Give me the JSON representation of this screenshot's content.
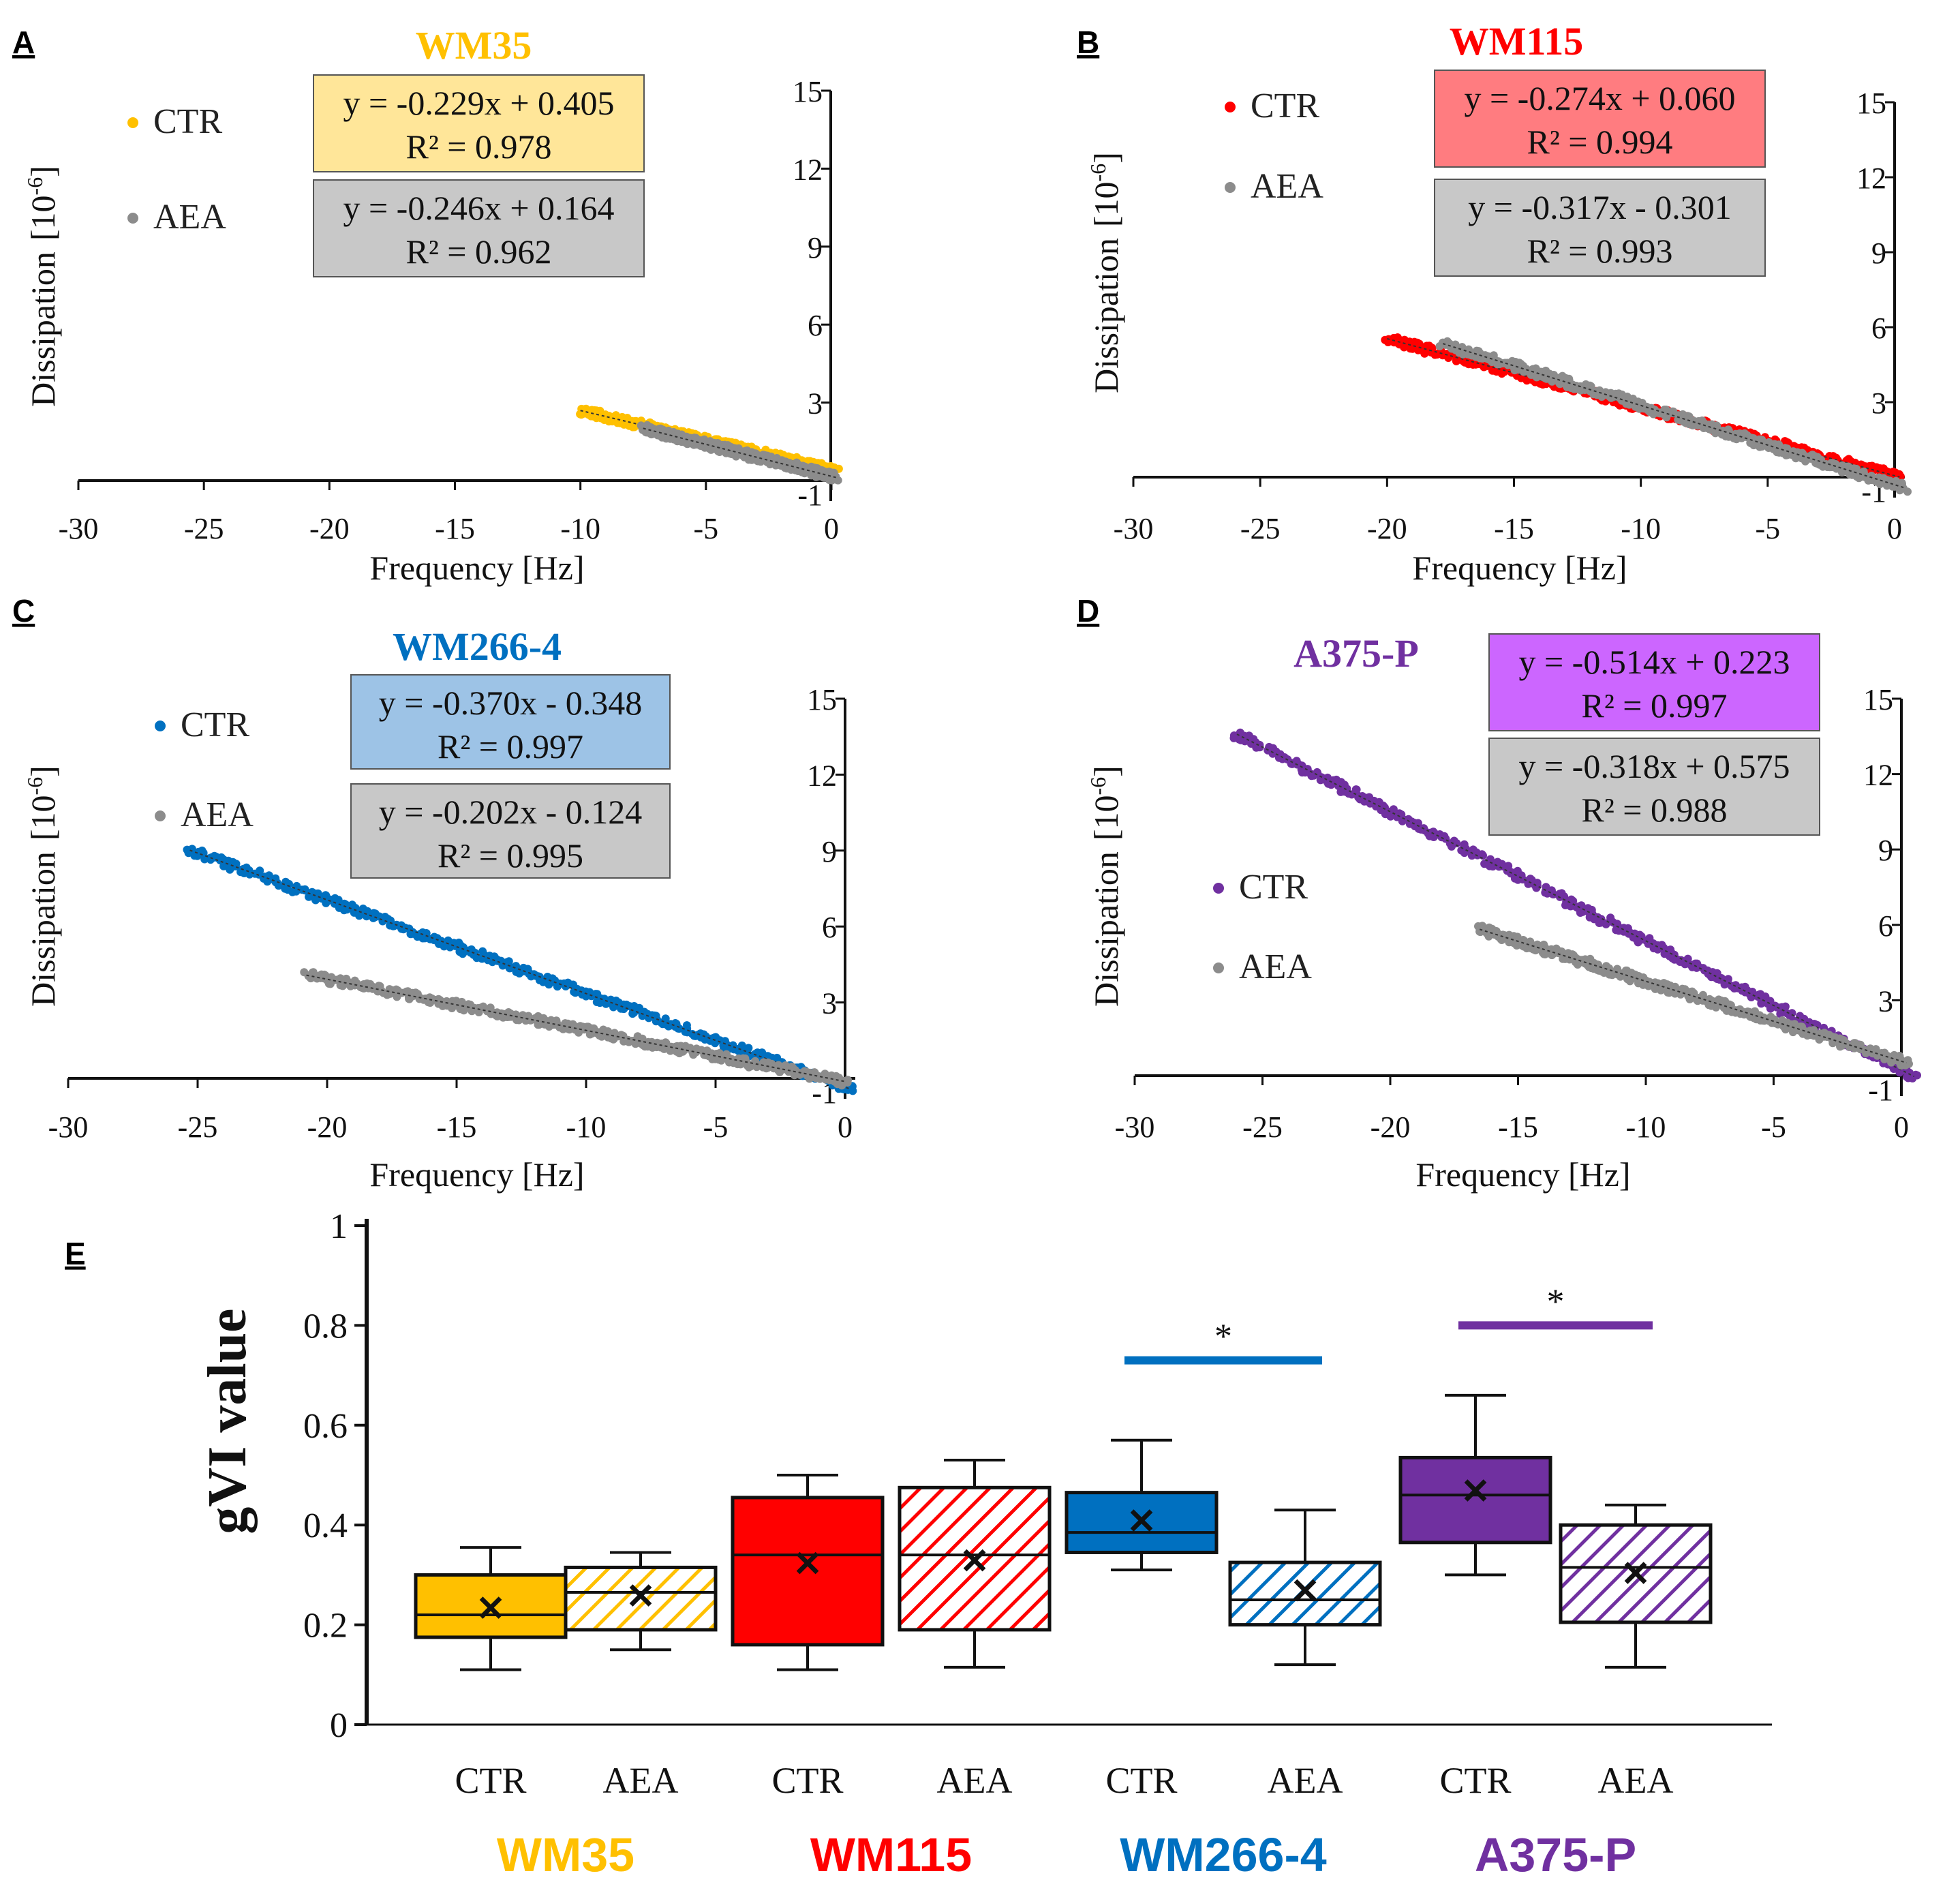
{
  "chart_data": [
    {
      "type": "scatter",
      "panel": "A",
      "title": "WM35",
      "title_color": "#FFC000",
      "xlabel": "Frequency [Hz]",
      "ylabel_main": "Dissipation",
      "ylabel_unit_base": "[10",
      "ylabel_unit_exp": "-6",
      "ylabel_unit_close": "]",
      "xlim": [
        -30,
        0
      ],
      "ylim": [
        -1,
        15
      ],
      "xticks": [
        "-30",
        "-25",
        "-20",
        "-15",
        "-10",
        "-5",
        "0"
      ],
      "yticks": [
        "15",
        "12",
        "9",
        "6",
        "3",
        "-1"
      ],
      "series": [
        {
          "name": "CTR",
          "color": "#FFC000",
          "x_range": [
            -10.0,
            0.2
          ],
          "slope": -0.229,
          "intercept": 0.405,
          "equation": "y = -0.229x + 0.405",
          "r2": "R² = 0.978",
          "box_fill": "#FFE699"
        },
        {
          "name": "AEA",
          "color": "#8C8C8C",
          "x_range": [
            -7.5,
            0.2
          ],
          "slope": -0.246,
          "intercept": 0.164,
          "equation": "y = -0.246x + 0.164",
          "r2": "R² = 0.962",
          "box_fill": "#C8C8C8"
        }
      ]
    },
    {
      "type": "scatter",
      "panel": "B",
      "title": "WM115",
      "title_color": "#FF0000",
      "xlabel": "Frequency [Hz]",
      "ylabel_main": "Dissipation",
      "ylabel_unit_base": "[10",
      "ylabel_unit_exp": "-6",
      "ylabel_unit_close": "]",
      "xlim": [
        -30,
        0
      ],
      "ylim": [
        -1,
        15
      ],
      "xticks": [
        "-30",
        "-25",
        "-20",
        "-15",
        "-10",
        "-5",
        "0"
      ],
      "yticks": [
        "15",
        "12",
        "9",
        "6",
        "3",
        "-1"
      ],
      "series": [
        {
          "name": "CTR",
          "color": "#FF0000",
          "x_range": [
            -20.0,
            0.2
          ],
          "slope": -0.274,
          "intercept": 0.06,
          "equation": "y = -0.274x + 0.060",
          "r2": "R² = 0.994",
          "box_fill": "#FF7C80"
        },
        {
          "name": "AEA",
          "color": "#8C8C8C",
          "x_range": [
            -17.8,
            0.4
          ],
          "slope": -0.317,
          "intercept": -0.301,
          "equation": "y = -0.317x - 0.301",
          "r2": "R² = 0.993",
          "box_fill": "#C8C8C8"
        }
      ]
    },
    {
      "type": "scatter",
      "panel": "C",
      "title": "WM266-4",
      "title_color": "#0070C0",
      "xlabel": "Frequency [Hz]",
      "ylabel_main": "Dissipation",
      "ylabel_unit_base": "[10",
      "ylabel_unit_exp": "-6",
      "ylabel_unit_close": "]",
      "xlim": [
        -30,
        0
      ],
      "ylim": [
        -1,
        15
      ],
      "xticks": [
        "-30",
        "-25",
        "-20",
        "-15",
        "-10",
        "-5",
        "0"
      ],
      "yticks": [
        "15",
        "12",
        "9",
        "6",
        "3",
        "-1"
      ],
      "series": [
        {
          "name": "CTR",
          "color": "#0070C0",
          "x_range": [
            -25.3,
            0.2
          ],
          "slope": -0.37,
          "intercept": -0.348,
          "equation": "y = -0.370x - 0.348",
          "r2": "R² = 0.997",
          "box_fill": "#9DC3E6"
        },
        {
          "name": "AEA",
          "color": "#8C8C8C",
          "x_range": [
            -20.8,
            0.0
          ],
          "slope": -0.202,
          "intercept": -0.124,
          "equation": "y = -0.202x - 0.124",
          "r2": "R² = 0.995",
          "box_fill": "#C8C8C8"
        }
      ]
    },
    {
      "type": "scatter",
      "panel": "D",
      "title": "A375-P",
      "title_color": "#7030A0",
      "xlabel": "Frequency [Hz]",
      "ylabel_main": "Dissipation",
      "ylabel_unit_base": "[10",
      "ylabel_unit_exp": "-6",
      "ylabel_unit_close": "]",
      "xlim": [
        -30,
        0
      ],
      "ylim": [
        -1,
        15
      ],
      "xticks": [
        "-30",
        "-25",
        "-20",
        "-15",
        "-10",
        "-5",
        "0"
      ],
      "yticks": [
        "15",
        "12",
        "9",
        "6",
        "3",
        "-1"
      ],
      "series": [
        {
          "name": "CTR",
          "color": "#7030A0",
          "x_range": [
            -26.0,
            0.5
          ],
          "slope": -0.514,
          "intercept": 0.223,
          "equation": "y = -0.514x + 0.223",
          "r2": "R² = 0.997",
          "box_fill": "#CC66FF"
        },
        {
          "name": "AEA",
          "color": "#8C8C8C",
          "x_range": [
            -16.5,
            0.2
          ],
          "slope": -0.318,
          "intercept": 0.575,
          "equation": "y = -0.318x + 0.575",
          "r2": "R² = 0.988",
          "box_fill": "#C8C8C8"
        }
      ]
    },
    {
      "type": "box",
      "panel": "E",
      "ylabel": "gVI value",
      "ylim": [
        0,
        1
      ],
      "yticks": [
        "0",
        "0.2",
        "0.4",
        "0.6",
        "0.8",
        "1"
      ],
      "groups": [
        {
          "name": "WM35",
          "color": "#FFC000",
          "boxes": [
            {
              "label": "CTR",
              "hatched": false,
              "min": 0.11,
              "q1": 0.175,
              "median": 0.22,
              "q3": 0.3,
              "max": 0.355,
              "mean": 0.23
            },
            {
              "label": "AEA",
              "hatched": true,
              "min": 0.15,
              "q1": 0.19,
              "median": 0.265,
              "q3": 0.315,
              "max": 0.345,
              "mean": 0.255
            }
          ]
        },
        {
          "name": "WM115",
          "color": "#FF0000",
          "boxes": [
            {
              "label": "CTR",
              "hatched": false,
              "min": 0.11,
              "q1": 0.16,
              "median": 0.34,
              "q3": 0.455,
              "max": 0.5,
              "mean": 0.32
            },
            {
              "label": "AEA",
              "hatched": true,
              "min": 0.115,
              "q1": 0.19,
              "median": 0.34,
              "q3": 0.475,
              "max": 0.53,
              "mean": 0.325
            }
          ]
        },
        {
          "name": "WM266-4",
          "color": "#0070C0",
          "boxes": [
            {
              "label": "CTR",
              "hatched": false,
              "min": 0.31,
              "q1": 0.345,
              "median": 0.385,
              "q3": 0.465,
              "max": 0.57,
              "mean": 0.405
            },
            {
              "label": "AEA",
              "hatched": true,
              "min": 0.12,
              "q1": 0.2,
              "median": 0.25,
              "q3": 0.325,
              "max": 0.43,
              "mean": 0.265
            }
          ]
        },
        {
          "name": "A375-P",
          "color": "#7030A0",
          "boxes": [
            {
              "label": "CTR",
              "hatched": false,
              "min": 0.3,
              "q1": 0.365,
              "median": 0.46,
              "q3": 0.535,
              "max": 0.66,
              "mean": 0.465
            },
            {
              "label": "AEA",
              "hatched": true,
              "min": 0.115,
              "q1": 0.205,
              "median": 0.315,
              "q3": 0.4,
              "max": 0.44,
              "mean": 0.3
            }
          ]
        }
      ],
      "significance": [
        {
          "group": "WM266-4",
          "y": 0.73,
          "label": "*",
          "color": "#0070C0"
        },
        {
          "group": "A375-P",
          "y": 0.8,
          "label": "*",
          "color": "#7030A0"
        }
      ],
      "mean_marker": "✕"
    }
  ]
}
